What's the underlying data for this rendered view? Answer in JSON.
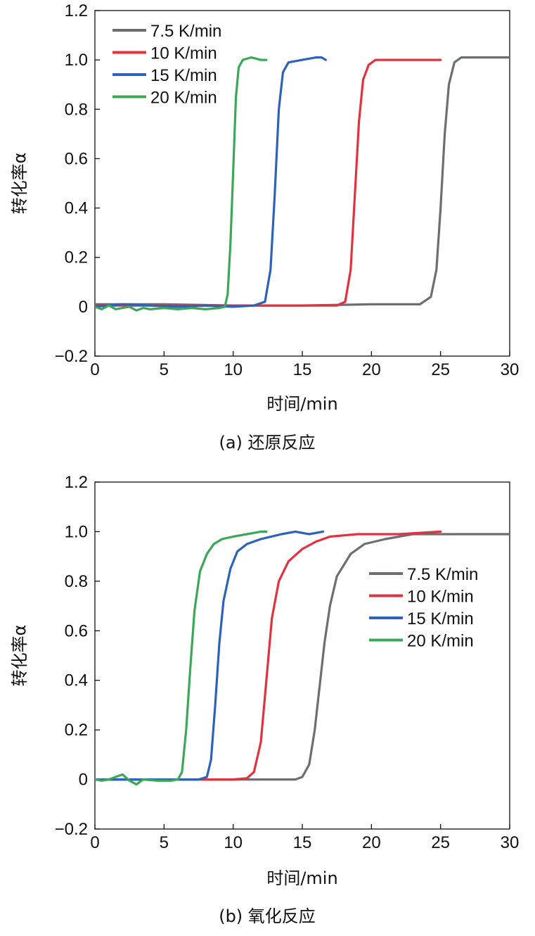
{
  "chart_data": [
    {
      "type": "line",
      "panel": "a",
      "caption": "(a) 还原反应",
      "xlabel": "时间/min",
      "ylabel": "转化率α",
      "xlim": [
        0,
        30
      ],
      "ylim": [
        -0.2,
        1.2
      ],
      "xticks": [
        0,
        5,
        10,
        15,
        20,
        25,
        30
      ],
      "yticks": [
        -0.2,
        0,
        0.2,
        0.4,
        0.6,
        0.8,
        1.0,
        1.2
      ],
      "ytick_labels": [
        "−0.2",
        "0",
        "0.2",
        "0.4",
        "0.6",
        "0.8",
        "1.0",
        "1.2"
      ],
      "legend_position": "top-left",
      "series": [
        {
          "name": "7.5 K/min",
          "color": "#6d6e71",
          "points": [
            [
              0,
              0.01
            ],
            [
              5,
              0.01
            ],
            [
              10,
              0.005
            ],
            [
              15,
              0.005
            ],
            [
              20,
              0.01
            ],
            [
              22,
              0.01
            ],
            [
              23.5,
              0.01
            ],
            [
              24.3,
              0.04
            ],
            [
              24.7,
              0.15
            ],
            [
              25.0,
              0.4
            ],
            [
              25.3,
              0.7
            ],
            [
              25.6,
              0.9
            ],
            [
              26.0,
              0.99
            ],
            [
              26.5,
              1.01
            ],
            [
              28,
              1.01
            ],
            [
              30,
              1.01
            ]
          ]
        },
        {
          "name": "10 K/min",
          "color": "#e0323f",
          "points": [
            [
              0,
              0.005
            ],
            [
              5,
              0.005
            ],
            [
              10,
              0.005
            ],
            [
              15,
              0.005
            ],
            [
              17.5,
              0.005
            ],
            [
              18.1,
              0.02
            ],
            [
              18.5,
              0.15
            ],
            [
              18.8,
              0.45
            ],
            [
              19.1,
              0.75
            ],
            [
              19.4,
              0.92
            ],
            [
              19.8,
              0.98
            ],
            [
              20.3,
              1.0
            ],
            [
              22,
              1.0
            ],
            [
              25,
              1.0
            ]
          ]
        },
        {
          "name": "15 K/min",
          "color": "#2e62b8",
          "points": [
            [
              0,
              0.0
            ],
            [
              2,
              0.01
            ],
            [
              4,
              0.005
            ],
            [
              6,
              0.0
            ],
            [
              8,
              0.005
            ],
            [
              10,
              0.0
            ],
            [
              11.5,
              0.005
            ],
            [
              12.3,
              0.02
            ],
            [
              12.7,
              0.15
            ],
            [
              13.0,
              0.45
            ],
            [
              13.3,
              0.8
            ],
            [
              13.6,
              0.95
            ],
            [
              14.0,
              0.99
            ],
            [
              15,
              1.0
            ],
            [
              16,
              1.01
            ],
            [
              16.4,
              1.01
            ],
            [
              16.7,
              1.0
            ]
          ]
        },
        {
          "name": "20 K/min",
          "color": "#3aa858",
          "points": [
            [
              0,
              0.0
            ],
            [
              0.5,
              -0.01
            ],
            [
              1,
              0.005
            ],
            [
              1.5,
              -0.01
            ],
            [
              2,
              -0.005
            ],
            [
              2.5,
              0.0
            ],
            [
              3,
              -0.015
            ],
            [
              3.5,
              -0.005
            ],
            [
              4,
              -0.01
            ],
            [
              5,
              -0.005
            ],
            [
              6,
              -0.01
            ],
            [
              7,
              -0.005
            ],
            [
              8,
              -0.01
            ],
            [
              9,
              -0.005
            ],
            [
              9.4,
              0.0
            ],
            [
              9.6,
              0.05
            ],
            [
              9.8,
              0.25
            ],
            [
              10.0,
              0.55
            ],
            [
              10.2,
              0.85
            ],
            [
              10.4,
              0.97
            ],
            [
              10.7,
              1.0
            ],
            [
              11.3,
              1.01
            ],
            [
              12,
              1.0
            ],
            [
              12.4,
              1.0
            ]
          ]
        }
      ]
    },
    {
      "type": "line",
      "panel": "b",
      "caption": "(b) 氧化反应",
      "xlabel": "时间/min",
      "ylabel": "转化率α",
      "xlim": [
        0,
        30
      ],
      "ylim": [
        -0.2,
        1.2
      ],
      "xticks": [
        0,
        5,
        10,
        15,
        20,
        25,
        30
      ],
      "yticks": [
        -0.2,
        0,
        0.2,
        0.4,
        0.6,
        0.8,
        1.0,
        1.2
      ],
      "ytick_labels": [
        "−0.2",
        "0",
        "0.2",
        "0.4",
        "0.6",
        "0.8",
        "1.0",
        "1.2"
      ],
      "legend_position": "right",
      "series": [
        {
          "name": "7.5 K/min",
          "color": "#6d6e71",
          "points": [
            [
              0,
              0.0
            ],
            [
              5,
              0.0
            ],
            [
              10,
              0.0
            ],
            [
              13,
              0.0
            ],
            [
              14.5,
              0.0
            ],
            [
              15.0,
              0.01
            ],
            [
              15.5,
              0.06
            ],
            [
              15.9,
              0.2
            ],
            [
              16.3,
              0.4
            ],
            [
              16.6,
              0.55
            ],
            [
              17.0,
              0.7
            ],
            [
              17.5,
              0.82
            ],
            [
              18.5,
              0.91
            ],
            [
              19.5,
              0.95
            ],
            [
              21,
              0.97
            ],
            [
              23,
              0.99
            ],
            [
              26,
              0.99
            ],
            [
              30,
              0.99
            ]
          ]
        },
        {
          "name": "10 K/min",
          "color": "#e0323f",
          "points": [
            [
              0,
              0.0
            ],
            [
              5,
              0.0
            ],
            [
              8,
              0.0
            ],
            [
              10,
              0.0
            ],
            [
              11,
              0.005
            ],
            [
              11.5,
              0.03
            ],
            [
              12.0,
              0.15
            ],
            [
              12.4,
              0.4
            ],
            [
              12.8,
              0.65
            ],
            [
              13.3,
              0.8
            ],
            [
              14,
              0.88
            ],
            [
              15,
              0.93
            ],
            [
              16,
              0.96
            ],
            [
              17,
              0.98
            ],
            [
              19,
              0.99
            ],
            [
              22,
              0.99
            ],
            [
              25,
              1.0
            ]
          ]
        },
        {
          "name": "15 K/min",
          "color": "#2e62b8",
          "points": [
            [
              0,
              0.0
            ],
            [
              2,
              0.0
            ],
            [
              4,
              0.0
            ],
            [
              6,
              0.0
            ],
            [
              7.5,
              0.0
            ],
            [
              8.1,
              0.01
            ],
            [
              8.4,
              0.08
            ],
            [
              8.7,
              0.3
            ],
            [
              9.0,
              0.55
            ],
            [
              9.3,
              0.72
            ],
            [
              9.8,
              0.85
            ],
            [
              10.3,
              0.92
            ],
            [
              11,
              0.95
            ],
            [
              12,
              0.97
            ],
            [
              13.5,
              0.99
            ],
            [
              14.5,
              1.0
            ],
            [
              15.5,
              0.99
            ],
            [
              16.5,
              1.0
            ]
          ]
        },
        {
          "name": "20 K/min",
          "color": "#3aa858",
          "points": [
            [
              0,
              0.0
            ],
            [
              0.5,
              -0.005
            ],
            [
              1,
              0.0
            ],
            [
              1.5,
              0.01
            ],
            [
              2,
              0.02
            ],
            [
              2.5,
              -0.005
            ],
            [
              3,
              -0.02
            ],
            [
              3.5,
              0.0
            ],
            [
              4.5,
              -0.005
            ],
            [
              5.5,
              -0.005
            ],
            [
              6.0,
              0.0
            ],
            [
              6.3,
              0.03
            ],
            [
              6.6,
              0.2
            ],
            [
              6.9,
              0.45
            ],
            [
              7.2,
              0.68
            ],
            [
              7.6,
              0.84
            ],
            [
              8.1,
              0.91
            ],
            [
              8.6,
              0.95
            ],
            [
              9.2,
              0.97
            ],
            [
              10,
              0.98
            ],
            [
              11,
              0.99
            ],
            [
              12,
              1.0
            ],
            [
              12.4,
              1.0
            ]
          ]
        }
      ]
    }
  ]
}
